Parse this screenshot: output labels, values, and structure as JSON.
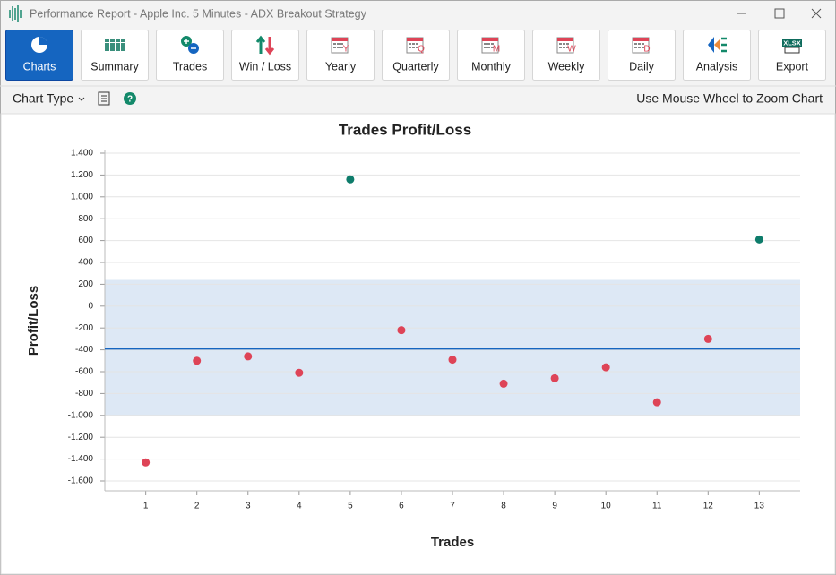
{
  "window": {
    "title": "Performance Report - Apple Inc. 5 Minutes - ADX Breakout Strategy"
  },
  "toolbar": {
    "buttons": [
      {
        "label": "Charts"
      },
      {
        "label": "Summary"
      },
      {
        "label": "Trades"
      },
      {
        "label": "Win / Loss"
      },
      {
        "label": "Yearly",
        "badge": "Y"
      },
      {
        "label": "Quarterly",
        "badge": "Q"
      },
      {
        "label": "Monthly",
        "badge": "M"
      },
      {
        "label": "Weekly",
        "badge": "W"
      },
      {
        "label": "Daily",
        "badge": "D"
      },
      {
        "label": "Analysis"
      },
      {
        "label": "Export",
        "badge": "XLSX"
      }
    ]
  },
  "subbar": {
    "chart_type": "Chart Type",
    "hint": "Use Mouse Wheel to Zoom Chart"
  },
  "chart_data": {
    "type": "scatter",
    "title": "Trades Profit/Loss",
    "x_label": "Trades",
    "y_label": "Profit/Loss",
    "x": [
      1,
      2,
      3,
      4,
      5,
      6,
      7,
      8,
      9,
      10,
      11,
      12,
      13
    ],
    "values": [
      -1430,
      -500,
      -460,
      -610,
      1160,
      -220,
      -490,
      -710,
      -660,
      -560,
      -880,
      -300,
      610
    ],
    "xlim": [
      0.2,
      13.8
    ],
    "ylim": [
      -1600,
      1400
    ],
    "xticks": [
      1,
      2,
      3,
      4,
      5,
      6,
      7,
      8,
      9,
      10,
      11,
      12,
      13
    ],
    "yticks": [
      {
        "value": 1400,
        "label": "1.400"
      },
      {
        "value": 1200,
        "label": "1.200"
      },
      {
        "value": 1000,
        "label": "1.000"
      },
      800,
      600,
      400,
      200,
      0,
      -200,
      -400,
      -600,
      -800,
      {
        "value": -1000,
        "label": "-1.000"
      },
      {
        "value": -1200,
        "label": "-1.200"
      },
      {
        "value": -1400,
        "label": "-1.400"
      },
      {
        "value": -1600,
        "label": "-1.600"
      }
    ],
    "grid": true,
    "positive_color": "#0e7c6b",
    "negative_color": "#de4457",
    "mean": -390,
    "mean_color": "#1565c0",
    "band": [
      -1000,
      240
    ],
    "band_color": "#dde8f5"
  }
}
